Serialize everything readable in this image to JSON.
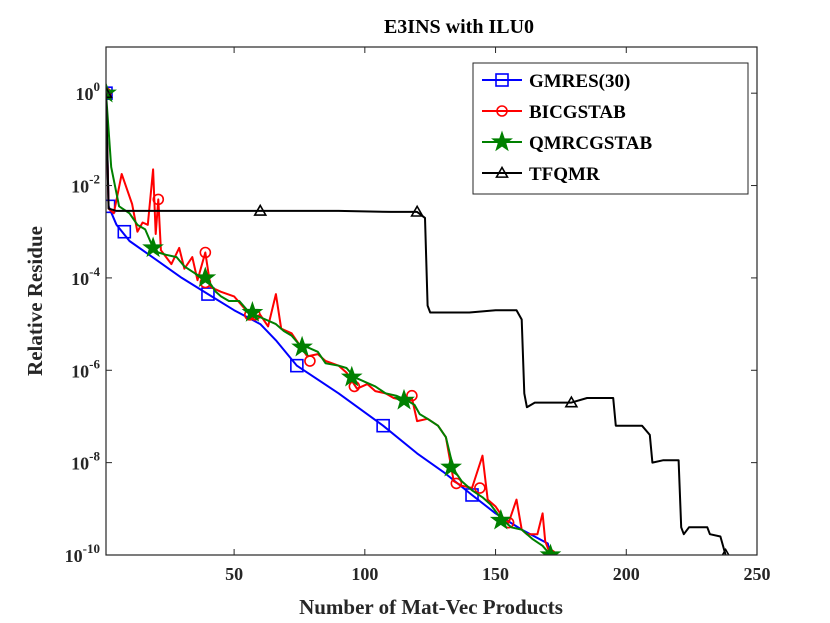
{
  "chart_data": {
    "type": "line",
    "title": "E3INS with ILU0",
    "xlabel": "Number of Mat-Vec Products",
    "ylabel": "Relative Residue",
    "xlim": [
      1,
      250
    ],
    "ylim_log10": [
      -10,
      1
    ],
    "y_scale": "log",
    "x_ticks": [
      50,
      100,
      150,
      200,
      250
    ],
    "x_tick_labels": [
      "50",
      "100",
      "150",
      "200",
      "250"
    ],
    "y_ticks_log10": [
      0,
      -2,
      -4,
      -6,
      -8,
      -10
    ],
    "y_tick_base": "10",
    "y_tick_exponents": [
      "0",
      "-2",
      "-4",
      "-6",
      "-8",
      "-10"
    ],
    "grid": false,
    "legend_position": "top-right",
    "series": [
      {
        "name": "GMRES(30)",
        "color": "#0000ff",
        "marker": "square",
        "line": [
          [
            1,
            0
          ],
          [
            2,
            -2.45
          ],
          [
            5,
            -2.85
          ],
          [
            10,
            -3.2
          ],
          [
            20,
            -3.6
          ],
          [
            30,
            -4.0
          ],
          [
            40,
            -4.35
          ],
          [
            50,
            -4.7
          ],
          [
            60,
            -5.0
          ],
          [
            66,
            -5.35
          ],
          [
            74,
            -5.9
          ],
          [
            90,
            -6.5
          ],
          [
            107,
            -7.2
          ],
          [
            120,
            -7.8
          ],
          [
            130,
            -8.2
          ],
          [
            141,
            -8.7
          ],
          [
            150,
            -9.1
          ],
          [
            160,
            -9.45
          ],
          [
            170,
            -9.75
          ],
          [
            171,
            -10
          ]
        ],
        "markers": [
          [
            1,
            0
          ],
          [
            2,
            -2.45
          ],
          [
            8,
            -3.0
          ],
          [
            40,
            -4.35
          ],
          [
            74,
            -5.9
          ],
          [
            107,
            -7.2
          ],
          [
            141,
            -8.7
          ]
        ]
      },
      {
        "name": "BICGSTAB",
        "color": "#ff0000",
        "marker": "circle",
        "line": [
          [
            1,
            0
          ],
          [
            2,
            -2.5
          ],
          [
            4,
            -2.6
          ],
          [
            7,
            -1.75
          ],
          [
            11,
            -2.4
          ],
          [
            13,
            -3.0
          ],
          [
            15,
            -2.8
          ],
          [
            17,
            -2.85
          ],
          [
            19,
            -1.65
          ],
          [
            20,
            -3.05
          ],
          [
            21,
            -2.3
          ],
          [
            22,
            -3.4
          ],
          [
            26,
            -3.7
          ],
          [
            29,
            -3.35
          ],
          [
            31,
            -3.8
          ],
          [
            34,
            -3.55
          ],
          [
            36,
            -4.05
          ],
          [
            39,
            -3.45
          ],
          [
            41,
            -4.2
          ],
          [
            45,
            -4.3
          ],
          [
            50,
            -4.4
          ],
          [
            53,
            -4.6
          ],
          [
            57,
            -4.85
          ],
          [
            60,
            -4.8
          ],
          [
            63,
            -5.05
          ],
          [
            66,
            -4.35
          ],
          [
            68,
            -5.1
          ],
          [
            72,
            -5.2
          ],
          [
            75,
            -5.45
          ],
          [
            78,
            -5.7
          ],
          [
            82,
            -5.65
          ],
          [
            85,
            -5.8
          ],
          [
            90,
            -5.9
          ],
          [
            93,
            -6.05
          ],
          [
            97,
            -6.4
          ],
          [
            101,
            -6.3
          ],
          [
            104,
            -6.45
          ],
          [
            108,
            -6.5
          ],
          [
            111,
            -6.6
          ],
          [
            115,
            -6.65
          ],
          [
            118,
            -6.6
          ],
          [
            120,
            -7.1
          ],
          [
            124,
            -7.05
          ],
          [
            128,
            -7.2
          ],
          [
            131,
            -7.45
          ],
          [
            134,
            -8.4
          ],
          [
            137,
            -8.5
          ],
          [
            141,
            -8.55
          ],
          [
            145,
            -7.85
          ],
          [
            147,
            -8.8
          ],
          [
            150,
            -8.95
          ],
          [
            153,
            -9.2
          ],
          [
            155,
            -9.3
          ],
          [
            158,
            -8.8
          ],
          [
            160,
            -9.45
          ],
          [
            162,
            -9.55
          ],
          [
            166,
            -9.55
          ],
          [
            168,
            -9.1
          ],
          [
            169,
            -9.7
          ],
          [
            171,
            -10
          ]
        ],
        "markers": [
          [
            1,
            0
          ],
          [
            21,
            -2.3
          ],
          [
            39,
            -3.45
          ],
          [
            39,
            -4.1
          ],
          [
            56,
            -4.8
          ],
          [
            58,
            -4.8
          ],
          [
            79,
            -5.8
          ],
          [
            96,
            -6.35
          ],
          [
            118,
            -6.55
          ],
          [
            135,
            -8.45
          ],
          [
            144,
            -8.55
          ],
          [
            155,
            -9.3
          ],
          [
            171,
            -10
          ]
        ]
      },
      {
        "name": "QMRCGSTAB",
        "color": "#008000",
        "marker": "star",
        "line": [
          [
            1,
            0
          ],
          [
            3,
            -1.6
          ],
          [
            6,
            -2.45
          ],
          [
            10,
            -2.6
          ],
          [
            13,
            -2.85
          ],
          [
            16,
            -2.95
          ],
          [
            19,
            -3.35
          ],
          [
            21,
            -3.45
          ],
          [
            24,
            -3.5
          ],
          [
            28,
            -3.55
          ],
          [
            31,
            -3.75
          ],
          [
            35,
            -3.9
          ],
          [
            38,
            -4.0
          ],
          [
            40,
            -4.05
          ],
          [
            43,
            -4.3
          ],
          [
            45,
            -4.4
          ],
          [
            48,
            -4.5
          ],
          [
            52,
            -4.5
          ],
          [
            55,
            -4.7
          ],
          [
            58,
            -4.8
          ],
          [
            62,
            -4.9
          ],
          [
            66,
            -5.0
          ],
          [
            69,
            -5.15
          ],
          [
            72,
            -5.25
          ],
          [
            75,
            -5.45
          ],
          [
            78,
            -5.5
          ],
          [
            82,
            -5.6
          ],
          [
            85,
            -5.85
          ],
          [
            90,
            -5.9
          ],
          [
            93,
            -5.95
          ],
          [
            96,
            -6.15
          ],
          [
            100,
            -6.25
          ],
          [
            104,
            -6.35
          ],
          [
            108,
            -6.5
          ],
          [
            112,
            -6.55
          ],
          [
            116,
            -6.65
          ],
          [
            119,
            -6.75
          ],
          [
            121,
            -6.95
          ],
          [
            124,
            -7.05
          ],
          [
            128,
            -7.2
          ],
          [
            131,
            -7.45
          ],
          [
            134,
            -8.15
          ],
          [
            137,
            -8.4
          ],
          [
            141,
            -8.6
          ],
          [
            145,
            -8.75
          ],
          [
            148,
            -8.9
          ],
          [
            152,
            -9.2
          ],
          [
            156,
            -9.4
          ],
          [
            160,
            -9.45
          ],
          [
            164,
            -9.65
          ],
          [
            168,
            -9.8
          ],
          [
            171,
            -10
          ]
        ],
        "markers": [
          [
            1,
            0
          ],
          [
            19,
            -3.35
          ],
          [
            39,
            -4.0
          ],
          [
            57,
            -4.75
          ],
          [
            76,
            -5.5
          ],
          [
            95,
            -6.15
          ],
          [
            115,
            -6.65
          ],
          [
            133,
            -8.1
          ],
          [
            152,
            -9.25
          ],
          [
            171,
            -10
          ]
        ]
      },
      {
        "name": "TFQMR",
        "color": "#000000",
        "marker": "triangle",
        "line": [
          [
            1,
            0
          ],
          [
            2,
            -2.5
          ],
          [
            5,
            -2.55
          ],
          [
            60,
            -2.55
          ],
          [
            90,
            -2.55
          ],
          [
            110,
            -2.57
          ],
          [
            120,
            -2.57
          ],
          [
            123,
            -2.7
          ],
          [
            124,
            -4.6
          ],
          [
            125,
            -4.75
          ],
          [
            140,
            -4.75
          ],
          [
            150,
            -4.7
          ],
          [
            158,
            -4.7
          ],
          [
            160,
            -4.9
          ],
          [
            161,
            -6.5
          ],
          [
            162,
            -6.8
          ],
          [
            165,
            -6.7
          ],
          [
            179,
            -6.7
          ],
          [
            185,
            -6.6
          ],
          [
            189,
            -6.6
          ],
          [
            195,
            -6.6
          ],
          [
            196,
            -7.2
          ],
          [
            204,
            -7.2
          ],
          [
            206,
            -7.2
          ],
          [
            209,
            -7.4
          ],
          [
            210,
            -8.0
          ],
          [
            214,
            -7.95
          ],
          [
            220,
            -7.95
          ],
          [
            221,
            -9.4
          ],
          [
            222,
            -9.55
          ],
          [
            224,
            -9.4
          ],
          [
            231,
            -9.4
          ],
          [
            232,
            -9.55
          ],
          [
            236,
            -9.6
          ],
          [
            238,
            -10
          ]
        ],
        "markers": [
          [
            1,
            0
          ],
          [
            60,
            -2.55
          ],
          [
            120,
            -2.57
          ],
          [
            179,
            -6.7
          ],
          [
            238,
            -10
          ]
        ]
      }
    ]
  }
}
